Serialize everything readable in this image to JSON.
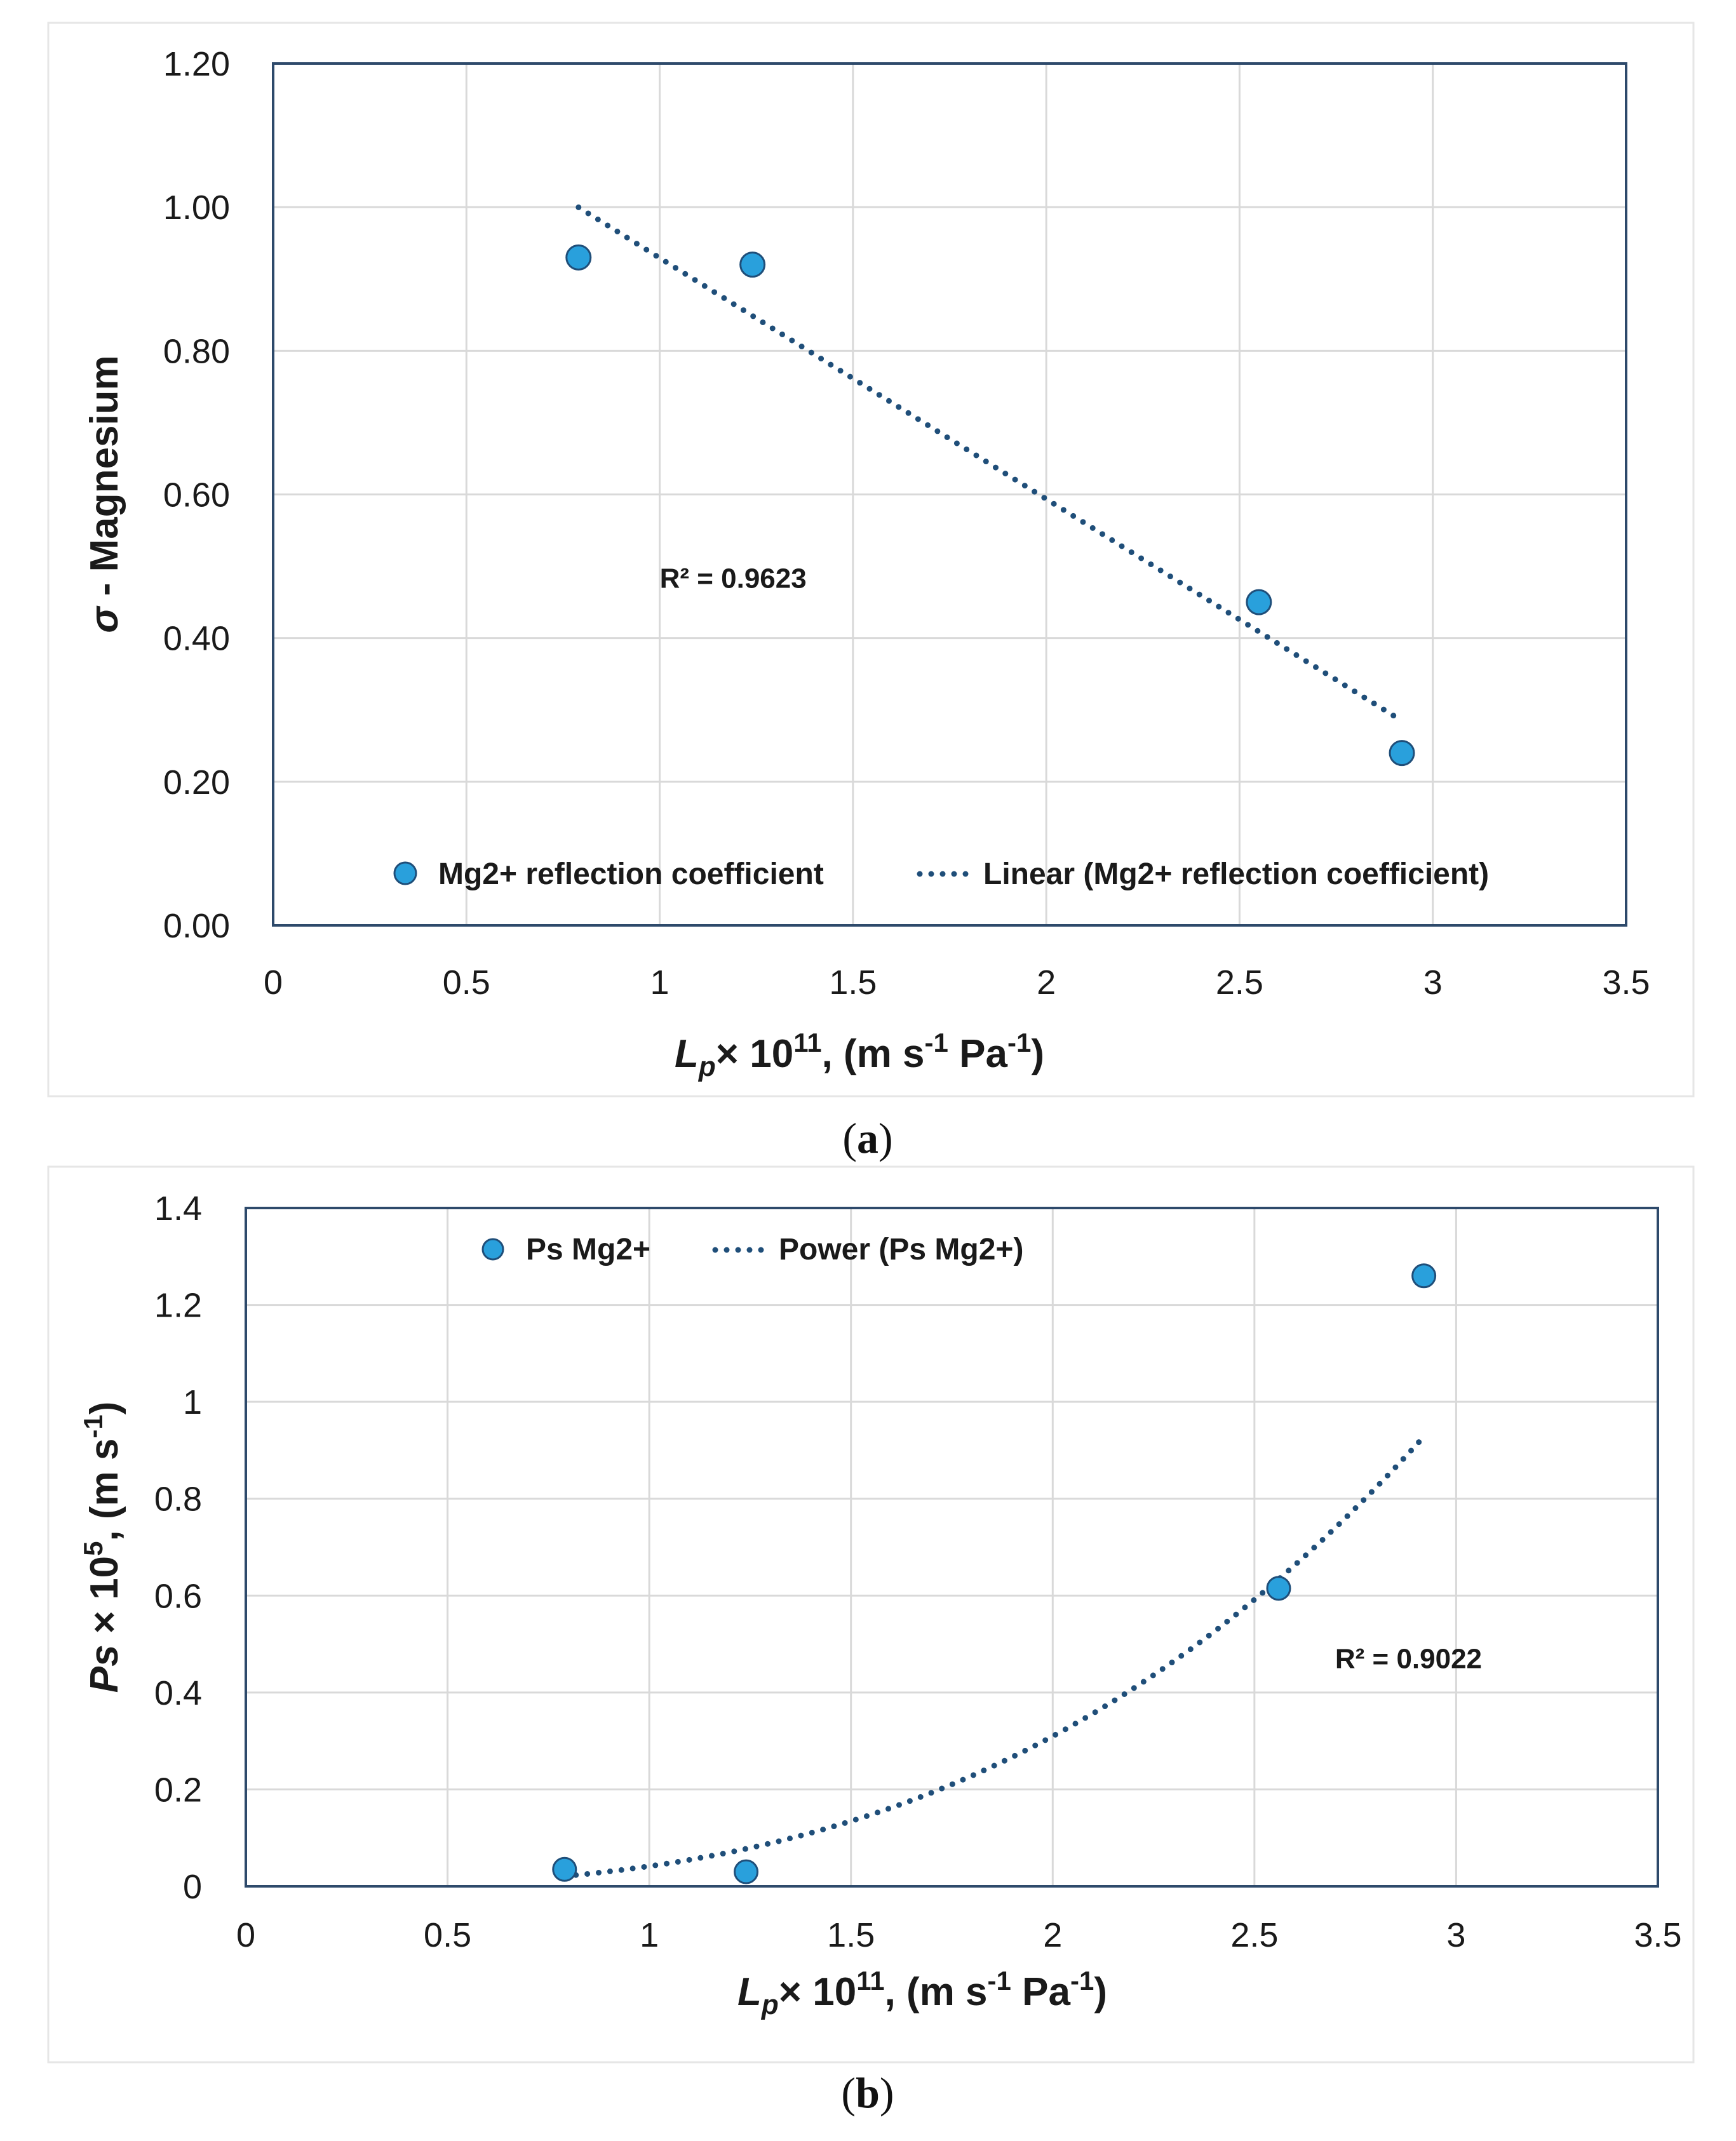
{
  "chart_data": [
    {
      "type": "scatter",
      "panel": "a",
      "caption": "a",
      "xlabel_main": "L",
      "xlabel_sub": "p",
      "xlabel_rest": "× 10",
      "xlabel_exp": "11",
      "xlabel_tail1": ", (m s",
      "xlabel_unit_exp1": "-1",
      "xlabel_tail2": " Pa",
      "xlabel_unit_exp2": "-1",
      "xlabel_tail3": ")",
      "ylabel_sym": "σ",
      "ylabel_rest": " - Magnesium",
      "xlim": [
        0,
        3.5
      ],
      "ylim": [
        0,
        1.2
      ],
      "xticks": [
        0,
        0.5,
        1,
        1.5,
        2,
        2.5,
        3,
        3.5
      ],
      "xtick_labels": [
        "0",
        "0.5",
        "1",
        "1.5",
        "2",
        "2.5",
        "3",
        "3.5"
      ],
      "yticks": [
        0,
        0.2,
        0.4,
        0.6,
        0.8,
        1.0,
        1.2
      ],
      "ytick_labels": [
        "0.00",
        "0.20",
        "0.40",
        "0.60",
        "0.80",
        "1.00",
        "1.20"
      ],
      "series": [
        {
          "name": "Mg2+ reflection coefficient",
          "x": [
            0.79,
            1.24,
            2.55,
            2.92
          ],
          "y": [
            0.93,
            0.92,
            0.45,
            0.24
          ]
        }
      ],
      "trendline": {
        "name": "Linear (Mg2+ reflection coefficient)",
        "kind": "linear",
        "x_range": [
          0.79,
          2.92
        ],
        "slope": -0.3357,
        "intercept": 1.265
      },
      "r2_label": "R² = 0.9623",
      "r2_at": [
        1.0,
        0.47
      ],
      "legend_position": "bottom-inside",
      "colors": {
        "marker": "#29a0dc",
        "marker_edge": "#1f4e79",
        "trend": "#1f4e79",
        "frame": "#2e4a6b",
        "grid": "#d9d9d9"
      }
    },
    {
      "type": "scatter",
      "panel": "b",
      "caption": "b",
      "xlabel_main": "L",
      "xlabel_sub": "p",
      "xlabel_rest": "× 10",
      "xlabel_exp": "11",
      "xlabel_tail1": ", (m s",
      "xlabel_unit_exp1": "-1",
      "xlabel_tail2": " Pa",
      "xlabel_unit_exp2": "-1",
      "xlabel_tail3": ")",
      "ylabel_sym": "Ps",
      "ylabel_rest": " × 10",
      "ylabel_exp": "5",
      "ylabel_tail1": ", (m s",
      "ylabel_unit_exp": "-1",
      "ylabel_tail2": ")",
      "xlim": [
        0,
        3.5
      ],
      "ylim": [
        0,
        1.4
      ],
      "xticks": [
        0,
        0.5,
        1,
        1.5,
        2,
        2.5,
        3,
        3.5
      ],
      "xtick_labels": [
        "0",
        "0.5",
        "1",
        "1.5",
        "2",
        "2.5",
        "3",
        "3.5"
      ],
      "yticks": [
        0,
        0.2,
        0.4,
        0.6,
        0.8,
        1.0,
        1.2,
        1.4
      ],
      "ytick_labels": [
        "0",
        "0.2",
        "0.4",
        "0.6",
        "0.8",
        "1",
        "1.2",
        "1.4"
      ],
      "series": [
        {
          "name": "Ps Mg2+",
          "x": [
            0.79,
            1.24,
            2.56,
            2.92
          ],
          "y": [
            0.035,
            0.03,
            0.615,
            1.26
          ]
        }
      ],
      "trendline": {
        "name": "Power (Ps Mg2+)",
        "kind": "power",
        "x_range": [
          0.79,
          2.92
        ],
        "coef": 0.0415,
        "exponent": 2.9
      },
      "r2_label": "R² = 0.9022",
      "r2_at": [
        2.7,
        0.45
      ],
      "legend_position": "top-inside",
      "colors": {
        "marker": "#29a0dc",
        "marker_edge": "#1f4e79",
        "trend": "#1f4e79",
        "frame": "#2e4a6b",
        "grid": "#d9d9d9"
      }
    }
  ]
}
